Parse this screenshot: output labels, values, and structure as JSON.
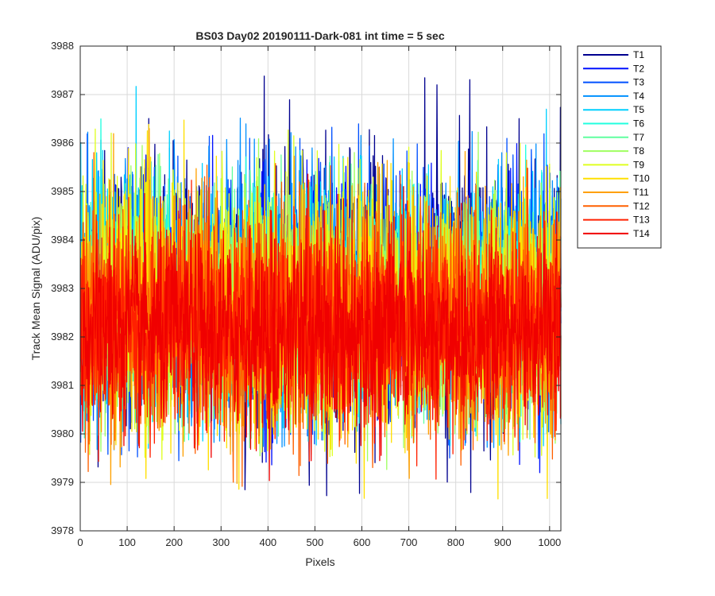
{
  "chart_data": {
    "type": "line",
    "title": "BS03 Day02 20190111-Dark-081 int time = 5 sec",
    "xlabel": "Pixels",
    "ylabel": "Track Mean Signal (ADU/pix)",
    "xlim": [
      0,
      1024
    ],
    "ylim": [
      3978,
      3988
    ],
    "x_ticks": [
      0,
      100,
      200,
      300,
      400,
      500,
      600,
      700,
      800,
      900,
      1000
    ],
    "y_ticks": [
      3978,
      3979,
      3980,
      3981,
      3982,
      3983,
      3984,
      3985,
      3986,
      3987,
      3988
    ],
    "grid": true,
    "legend_position": "outside-top-right",
    "x_values": "pixel index 1..1024",
    "series_summary": "Noisy dark-frame signal; each track fluctuates roughly 3979-3987 ADU/pix around a mean near 3982-3983.",
    "series": [
      {
        "name": "T1",
        "color": "#00008f",
        "mean": 3983.0,
        "min": 3978.7,
        "max": 3987.4
      },
      {
        "name": "T2",
        "color": "#0010ff",
        "mean": 3982.9,
        "min": 3979.2,
        "max": 3986.5
      },
      {
        "name": "T3",
        "color": "#0050ff",
        "mean": 3982.9,
        "min": 3979.4,
        "max": 3986.7
      },
      {
        "name": "T4",
        "color": "#0090ff",
        "mean": 3982.8,
        "min": 3979.6,
        "max": 3987.7
      },
      {
        "name": "T5",
        "color": "#00d0ff",
        "mean": 3982.8,
        "min": 3979.7,
        "max": 3987.3
      },
      {
        "name": "T6",
        "color": "#20ffdf",
        "mean": 3982.7,
        "min": 3979.8,
        "max": 3986.5
      },
      {
        "name": "T7",
        "color": "#60ff9f",
        "mean": 3982.7,
        "min": 3979.6,
        "max": 3986.4
      },
      {
        "name": "T8",
        "color": "#9fff60",
        "mean": 3982.6,
        "min": 3979.1,
        "max": 3986.5
      },
      {
        "name": "T9",
        "color": "#dfff20",
        "mean": 3982.6,
        "min": 3979.4,
        "max": 3987.4
      },
      {
        "name": "T10",
        "color": "#ffdf00",
        "mean": 3982.5,
        "min": 3978.6,
        "max": 3986.6
      },
      {
        "name": "T11",
        "color": "#ffa000",
        "mean": 3982.4,
        "min": 3978.9,
        "max": 3986.3
      },
      {
        "name": "T12",
        "color": "#ff6000",
        "mean": 3982.3,
        "min": 3978.7,
        "max": 3985.9
      },
      {
        "name": "T13",
        "color": "#ff2000",
        "mean": 3982.2,
        "min": 3978.9,
        "max": 3985.6
      },
      {
        "name": "T14",
        "color": "#f00000",
        "mean": 3982.1,
        "min": 3979.0,
        "max": 3985.2
      }
    ]
  }
}
